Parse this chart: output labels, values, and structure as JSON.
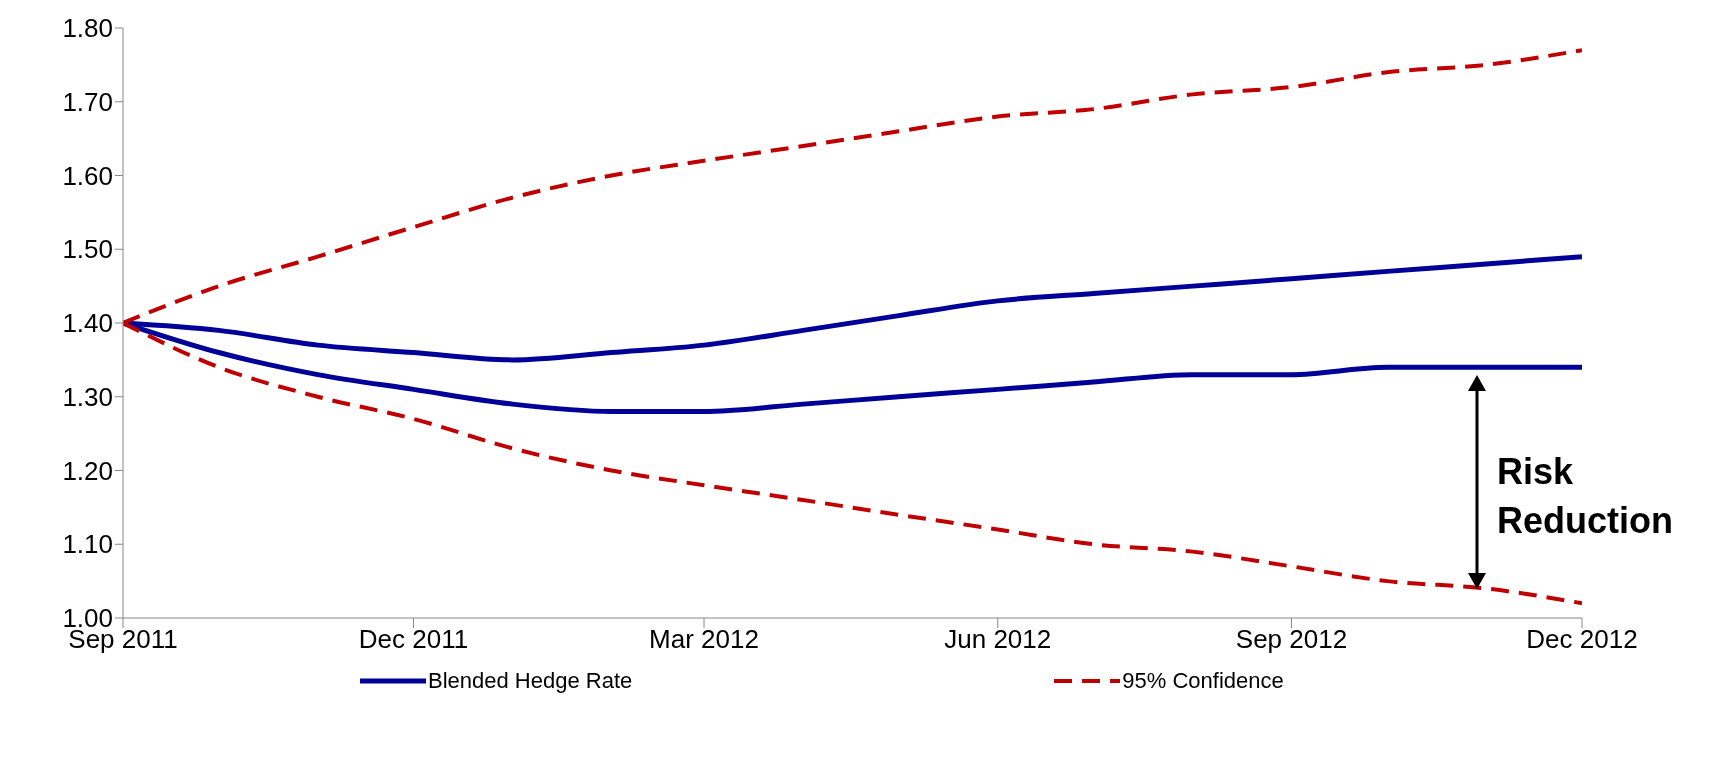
{
  "chart_data": {
    "type": "line",
    "x": [
      "2011-09",
      "2011-10",
      "2011-11",
      "2011-12",
      "2012-01",
      "2012-02",
      "2012-03",
      "2012-04",
      "2012-05",
      "2012-06",
      "2012-07",
      "2012-08",
      "2012-09",
      "2012-10",
      "2012-11",
      "2012-12"
    ],
    "series": [
      {
        "name": "Blended Hedge Rate",
        "color": "#000099",
        "line_style": "solid",
        "values": [
          1.4,
          1.39,
          1.37,
          1.36,
          1.35,
          1.36,
          1.37,
          1.39,
          1.41,
          1.43,
          1.44,
          1.45,
          1.46,
          1.47,
          1.48,
          1.49
        ]
      },
      {
        "color": "#000099",
        "line_style": "solid",
        "values": [
          1.4,
          1.36,
          1.33,
          1.31,
          1.29,
          1.28,
          1.28,
          1.29,
          1.3,
          1.31,
          1.32,
          1.33,
          1.33,
          1.34,
          1.34,
          1.34
        ]
      },
      {
        "name": "95% Confidence",
        "color": "#c00000",
        "line_style": "dashed",
        "values": [
          1.4,
          1.45,
          1.49,
          1.53,
          1.57,
          1.6,
          1.62,
          1.64,
          1.66,
          1.68,
          1.69,
          1.71,
          1.72,
          1.74,
          1.75,
          1.77
        ]
      },
      {
        "color": "#c00000",
        "line_style": "dashed",
        "values": [
          1.4,
          1.34,
          1.3,
          1.27,
          1.23,
          1.2,
          1.18,
          1.16,
          1.14,
          1.12,
          1.1,
          1.09,
          1.07,
          1.05,
          1.04,
          1.02
        ]
      }
    ],
    "xlim": [
      "2011-09",
      "2012-12"
    ],
    "xticks": [
      {
        "value": "2011-09",
        "label": "Sep 2011"
      },
      {
        "value": "2011-12",
        "label": "Dec 2011"
      },
      {
        "value": "2012-03",
        "label": "Mar 2012"
      },
      {
        "value": "2012-06",
        "label": "Jun 2012"
      },
      {
        "value": "2012-09",
        "label": "Sep 2012"
      },
      {
        "value": "2012-12",
        "label": "Dec 2012"
      }
    ],
    "ylim": [
      1.0,
      1.8
    ],
    "yticks": [
      {
        "value": 1.0,
        "label": "1.00"
      },
      {
        "value": 1.1,
        "label": "1.10"
      },
      {
        "value": 1.2,
        "label": "1.20"
      },
      {
        "value": 1.3,
        "label": "1.30"
      },
      {
        "value": 1.4,
        "label": "1.40"
      },
      {
        "value": 1.5,
        "label": "1.50"
      },
      {
        "value": 1.6,
        "label": "1.60"
      },
      {
        "value": 1.7,
        "label": "1.70"
      },
      {
        "value": 1.8,
        "label": "1.80"
      }
    ],
    "grid": false,
    "legend": "bottom",
    "marker": "none",
    "annotations": [
      "Risk Reduction"
    ]
  }
}
